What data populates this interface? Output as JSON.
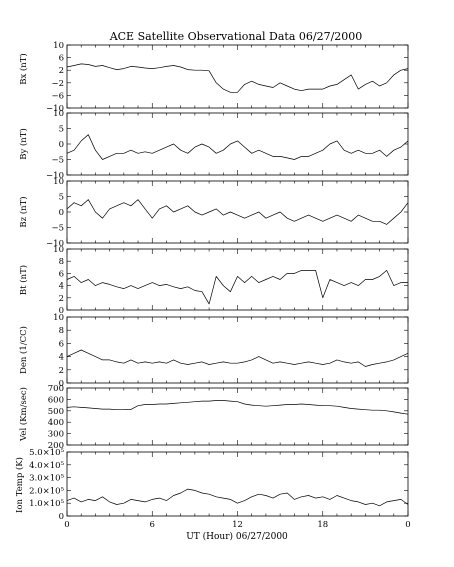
{
  "chart_data": {
    "title": "ACE Satellite Observational Data   06/27/2000",
    "type": "line",
    "xlabel": "UT (Hour)  06/27/2000",
    "x_ticks": [
      "0",
      "6",
      "12",
      "18",
      "0"
    ],
    "xlim": [
      0,
      24
    ],
    "panels": [
      {
        "name": "bx",
        "ylabel": "Bx (nT)",
        "ylim": [
          -10,
          10
        ],
        "yticks": [
          -10,
          -6,
          -2,
          2,
          6,
          10
        ],
        "ytick_labels": [
          "−10",
          "−6",
          "−2",
          "2",
          "6",
          "10"
        ],
        "x": [
          0,
          0.5,
          1,
          1.5,
          2,
          2.5,
          3,
          3.5,
          4,
          4.5,
          5,
          5.5,
          6,
          6.5,
          7,
          7.5,
          8,
          8.5,
          9,
          9.5,
          10,
          10.5,
          11,
          11.5,
          12,
          12.5,
          13,
          13.5,
          14,
          14.5,
          15,
          15.5,
          16,
          16.5,
          17,
          17.5,
          18,
          18.5,
          19,
          19.5,
          20,
          20.5,
          21,
          21.5,
          22,
          22.5,
          23,
          23.5,
          24
        ],
        "values": [
          3,
          3.5,
          4,
          3.8,
          3.2,
          3.5,
          2.8,
          2.2,
          2.5,
          3.2,
          3,
          2.7,
          2.5,
          2.8,
          3.2,
          3.5,
          3,
          2.2,
          2,
          2,
          1.8,
          -2,
          -4,
          -5,
          -5,
          -2.5,
          -1.5,
          -2.5,
          -3,
          -3.5,
          -2,
          -3,
          -4,
          -4.5,
          -4,
          -4,
          -4,
          -3,
          -2.5,
          -1,
          0.5,
          -4,
          -2.5,
          -1.5,
          -3,
          -2,
          0.5,
          2,
          2.5
        ]
      },
      {
        "name": "by",
        "ylabel": "By (nT)",
        "ylim": [
          -10,
          10
        ],
        "yticks": [
          -10,
          -5,
          0,
          5,
          10
        ],
        "ytick_labels": [
          "−10",
          "−5",
          "0",
          "5",
          "10"
        ],
        "x": [
          0,
          0.5,
          1,
          1.5,
          2,
          2.5,
          3,
          3.5,
          4,
          4.5,
          5,
          5.5,
          6,
          6.5,
          7,
          7.5,
          8,
          8.5,
          9,
          9.5,
          10,
          10.5,
          11,
          11.5,
          12,
          12.5,
          13,
          13.5,
          14,
          14.5,
          15,
          15.5,
          16,
          16.5,
          17,
          17.5,
          18,
          18.5,
          19,
          19.5,
          20,
          20.5,
          21,
          21.5,
          22,
          22.5,
          23,
          23.5,
          24
        ],
        "values": [
          -3,
          -2,
          1,
          3,
          -2,
          -5,
          -4,
          -3,
          -3,
          -2,
          -3,
          -2.5,
          -3,
          -2,
          -1,
          0,
          -2,
          -3,
          -1,
          0,
          -1,
          -3,
          -2,
          0,
          1,
          -1,
          -3,
          -2,
          -3,
          -4,
          -4,
          -4.5,
          -5,
          -4,
          -4,
          -3,
          -2,
          0,
          1,
          -2,
          -3,
          -2,
          -3,
          -3,
          -2,
          -4,
          -2,
          -1,
          1
        ]
      },
      {
        "name": "bz",
        "ylabel": "Bz (nT)",
        "ylim": [
          -10,
          10
        ],
        "yticks": [
          -10,
          -5,
          0,
          5,
          10
        ],
        "ytick_labels": [
          "−10",
          "−5",
          "0",
          "5",
          "10"
        ],
        "x": [
          0,
          0.5,
          1,
          1.5,
          2,
          2.5,
          3,
          3.5,
          4,
          4.5,
          5,
          5.5,
          6,
          6.5,
          7,
          7.5,
          8,
          8.5,
          9,
          9.5,
          10,
          10.5,
          11,
          11.5,
          12,
          12.5,
          13,
          13.5,
          14,
          14.5,
          15,
          15.5,
          16,
          16.5,
          17,
          17.5,
          18,
          18.5,
          19,
          19.5,
          20,
          20.5,
          21,
          21.5,
          22,
          22.5,
          23,
          23.5,
          24
        ],
        "values": [
          1,
          3,
          2,
          4,
          0,
          -2,
          1,
          2,
          3,
          2,
          4,
          1,
          -2,
          1,
          2,
          0,
          1,
          2,
          0,
          -1,
          0,
          1,
          -1,
          0,
          -1,
          -2,
          -1,
          0,
          -2,
          -1,
          0,
          -2,
          -3,
          -2,
          -1,
          -2,
          -3,
          -2,
          -1,
          -2,
          -3,
          -1,
          -2,
          -3,
          -3,
          -4,
          -2,
          0,
          3
        ]
      },
      {
        "name": "bt",
        "ylabel": "Bt (nT)",
        "ylim": [
          0,
          10
        ],
        "yticks": [
          0,
          2,
          4,
          6,
          8,
          10
        ],
        "ytick_labels": [
          "0",
          "2",
          "4",
          "6",
          "8",
          "10"
        ],
        "x": [
          0,
          0.5,
          1,
          1.5,
          2,
          2.5,
          3,
          3.5,
          4,
          4.5,
          5,
          5.5,
          6,
          6.5,
          7,
          7.5,
          8,
          8.5,
          9,
          9.5,
          10,
          10.5,
          11,
          11.5,
          12,
          12.5,
          13,
          13.5,
          14,
          14.5,
          15,
          15.5,
          16,
          16.5,
          17,
          17.5,
          18,
          18.5,
          19,
          19.5,
          20,
          20.5,
          21,
          21.5,
          22,
          22.5,
          23,
          23.5,
          24
        ],
        "values": [
          5,
          5.5,
          4.5,
          5,
          4,
          4.5,
          4.2,
          3.8,
          3.5,
          4,
          3.5,
          4,
          4.5,
          4,
          4.2,
          3.8,
          3.5,
          3.8,
          3.2,
          3,
          1,
          5.5,
          4,
          3,
          5.5,
          4.5,
          5.5,
          4.5,
          5,
          5.5,
          5,
          6,
          6,
          6.5,
          6.5,
          6.5,
          2,
          5,
          4.5,
          4,
          4.5,
          4,
          5,
          5,
          5.5,
          6.5,
          4,
          4.5,
          4.5
        ]
      },
      {
        "name": "den",
        "ylabel": "Den (1/CC)",
        "ylim": [
          0,
          10
        ],
        "yticks": [
          0,
          2,
          4,
          6,
          8,
          10
        ],
        "ytick_labels": [
          "0",
          "2",
          "4",
          "6",
          "8",
          "10"
        ],
        "x": [
          0,
          0.5,
          1,
          1.5,
          2,
          2.5,
          3,
          3.5,
          4,
          4.5,
          5,
          5.5,
          6,
          6.5,
          7,
          7.5,
          8,
          8.5,
          9,
          9.5,
          10,
          10.5,
          11,
          11.5,
          12,
          12.5,
          13,
          13.5,
          14,
          14.5,
          15,
          15.5,
          16,
          16.5,
          17,
          17.5,
          18,
          18.5,
          19,
          19.5,
          20,
          20.5,
          21,
          21.5,
          22,
          22.5,
          23,
          23.5,
          24
        ],
        "values": [
          4,
          4.5,
          5,
          4.5,
          4,
          3.5,
          3.5,
          3.2,
          3,
          3.5,
          3,
          3.2,
          3,
          3.2,
          3,
          3.5,
          3,
          2.8,
          3,
          3.2,
          2.8,
          3,
          3.2,
          3,
          3,
          3.2,
          3.5,
          4,
          3.5,
          3,
          3.2,
          3,
          2.8,
          3,
          3.2,
          3,
          2.8,
          3,
          3.5,
          3.2,
          3,
          3.2,
          2.5,
          2.8,
          3,
          3.2,
          3.5,
          4,
          4.5
        ]
      },
      {
        "name": "vel",
        "ylabel": "Vel (Km/sec)",
        "ylim": [
          200,
          700
        ],
        "yticks": [
          200,
          300,
          400,
          500,
          600,
          700
        ],
        "ytick_labels": [
          "200",
          "300",
          "400",
          "500",
          "600",
          "700"
        ],
        "x": [
          0,
          0.5,
          1,
          1.5,
          2,
          2.5,
          3,
          3.5,
          4,
          4.5,
          5,
          5.5,
          6,
          6.5,
          7,
          7.5,
          8,
          8.5,
          9,
          9.5,
          10,
          10.5,
          11,
          11.5,
          12,
          12.5,
          13,
          13.5,
          14,
          14.5,
          15,
          15.5,
          16,
          16.5,
          17,
          17.5,
          18,
          18.5,
          19,
          19.5,
          20,
          20.5,
          21,
          21.5,
          22,
          22.5,
          23,
          23.5,
          24
        ],
        "values": [
          530,
          535,
          530,
          525,
          520,
          515,
          515,
          510,
          510,
          512,
          545,
          555,
          555,
          560,
          560,
          565,
          570,
          575,
          580,
          585,
          585,
          590,
          590,
          585,
          580,
          560,
          550,
          545,
          540,
          545,
          550,
          555,
          555,
          560,
          555,
          550,
          545,
          545,
          540,
          530,
          520,
          515,
          510,
          505,
          505,
          500,
          490,
          480,
          470
        ]
      },
      {
        "name": "ion-temp",
        "ylabel": "Ion Temp (K)",
        "ylim": [
          0,
          500000
        ],
        "yticks": [
          0,
          100000,
          200000,
          300000,
          400000,
          500000
        ],
        "ytick_labels": [
          "0",
          "1.0×10⁵",
          "2.0×10⁵",
          "3.0×10⁵",
          "4.0×10⁵",
          "5.0×10⁵"
        ],
        "x": [
          0,
          0.5,
          1,
          1.5,
          2,
          2.5,
          3,
          3.5,
          4,
          4.5,
          5,
          5.5,
          6,
          6.5,
          7,
          7.5,
          8,
          8.5,
          9,
          9.5,
          10,
          10.5,
          11,
          11.5,
          12,
          12.5,
          13,
          13.5,
          14,
          14.5,
          15,
          15.5,
          16,
          16.5,
          17,
          17.5,
          18,
          18.5,
          19,
          19.5,
          20,
          20.5,
          21,
          21.5,
          22,
          22.5,
          23,
          23.5,
          24
        ],
        "values": [
          120000,
          140000,
          110000,
          130000,
          120000,
          150000,
          110000,
          90000,
          100000,
          130000,
          120000,
          110000,
          130000,
          140000,
          120000,
          160000,
          180000,
          210000,
          200000,
          180000,
          170000,
          150000,
          140000,
          130000,
          100000,
          120000,
          150000,
          170000,
          160000,
          140000,
          170000,
          180000,
          130000,
          150000,
          160000,
          140000,
          150000,
          130000,
          160000,
          140000,
          120000,
          110000,
          90000,
          100000,
          80000,
          110000,
          120000,
          130000,
          90000
        ]
      }
    ]
  }
}
